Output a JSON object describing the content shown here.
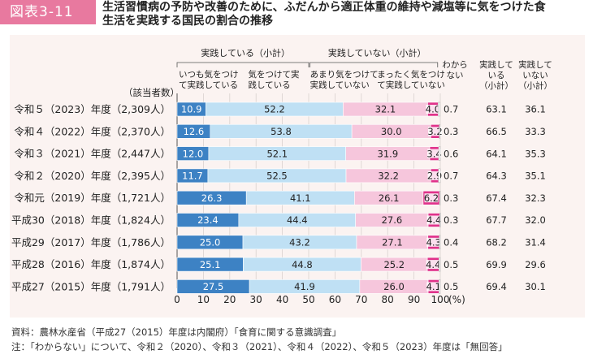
{
  "figure": {
    "badge": "図表3-11",
    "title_line1": "生活習慣病の予防や改善のために、ふだんから適正体重の維持や減塩等に気をつけた食",
    "title_line2": "生活を実践する国民の割合の推移"
  },
  "colors": {
    "panel_bg": "#fbf3f1",
    "always": "#3d82c4",
    "careful": "#bfe0f4",
    "not_much": "#f6c6dc",
    "not_at_all": "#e0328a",
    "grid": "#d9d2cf",
    "axis": "#555555"
  },
  "chart_data": {
    "type": "bar",
    "orientation": "horizontal",
    "stacked": true,
    "unit": "(%)",
    "count_header": "（該当者数）",
    "group_headers": {
      "practicing": "実践している（小計）",
      "not_practicing": "実践していない（小計）"
    },
    "column_headers": {
      "always": "いつも気をつけて実践している",
      "careful": "気をつけて実践している",
      "not_much": "あまり気をつけて実践していない",
      "not_at_all": "まったく気をつけて実践していない",
      "unknown": "わからない",
      "practicing_subtotal": "実践している（小計）",
      "not_practicing_subtotal": "実践していない（小計）"
    },
    "categories": [
      "令和５（2023）年度（2,309人）",
      "令和４（2022）年度（2,370人）",
      "令和３（2021）年度（2,447人）",
      "令和２（2020）年度（2,395人）",
      "令和元（2019）年度（1,721人）",
      "平成30（2018）年度（1,824人）",
      "平成29（2017）年度（1,786人）",
      "平成28（2016）年度（1,874人）",
      "平成27（2015）年度（1,791人）"
    ],
    "series": [
      {
        "name": "いつも気をつけて実践している",
        "key": "always",
        "values": [
          10.9,
          12.6,
          12.0,
          11.7,
          26.3,
          23.4,
          25.0,
          25.1,
          27.5
        ]
      },
      {
        "name": "気をつけて実践している",
        "key": "careful",
        "values": [
          52.2,
          53.8,
          52.1,
          52.5,
          41.1,
          44.4,
          43.2,
          44.8,
          41.9
        ]
      },
      {
        "name": "あまり気をつけて実践していない",
        "key": "not_much",
        "values": [
          32.1,
          30.0,
          31.9,
          32.2,
          26.1,
          27.6,
          27.1,
          25.2,
          26.0
        ]
      },
      {
        "name": "まったく気をつけて実践していない",
        "key": "not_at_all",
        "values": [
          4.0,
          3.2,
          3.4,
          2.9,
          6.2,
          4.4,
          4.3,
          4.4,
          4.1
        ]
      },
      {
        "name": "わからない",
        "key": "unknown",
        "values": [
          0.7,
          0.3,
          0.6,
          0.7,
          0.3,
          0.3,
          0.4,
          0.5,
          0.5
        ]
      }
    ],
    "practicing_subtotal": [
      63.1,
      66.5,
      64.1,
      64.3,
      67.4,
      67.7,
      68.2,
      69.9,
      69.4
    ],
    "not_practicing_subtotal": [
      36.1,
      33.3,
      35.3,
      35.1,
      32.3,
      32.0,
      31.4,
      29.6,
      30.1
    ],
    "xlim": [
      0,
      100
    ],
    "xticks": [
      0,
      10,
      20,
      30,
      40,
      50,
      60,
      70,
      80,
      90,
      100
    ],
    "grid": true
  },
  "footer": {
    "source": "資料：農林水産省（平成27（2015）年度は内閣府）「食育に関する意識調査」",
    "note": "注：「わからない」について、令和２（2020）、令和３（2021）、令和４（2022）、令和５（2023）年度は「無回答」"
  }
}
